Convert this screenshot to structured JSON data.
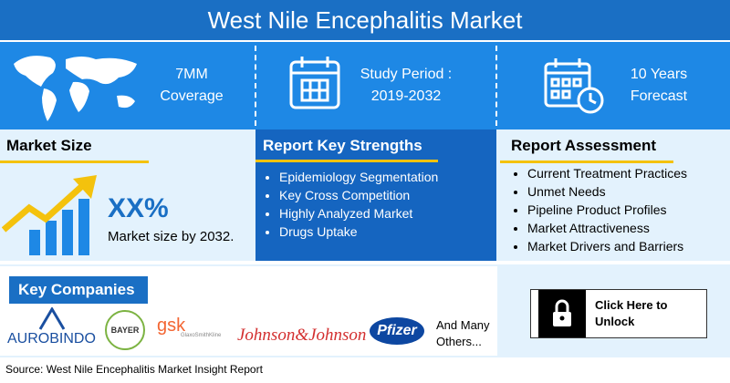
{
  "header": {
    "title": "West Nile Encephalitis Market"
  },
  "highlights": [
    {
      "lines": [
        "7MM",
        "Coverage"
      ]
    },
    {
      "lines": [
        "Study Period :",
        "2019-2032"
      ]
    },
    {
      "lines": [
        "10 Years",
        "Forecast"
      ]
    }
  ],
  "market_size": {
    "title": "Market Size",
    "value": "XX%",
    "caption": "Market size by 2032."
  },
  "key_strengths": {
    "title": "Report Key Strengths",
    "items": [
      "Epidemiology Segmentation",
      "Key Cross Competition",
      "Highly Analyzed Market",
      "Drugs Uptake"
    ]
  },
  "assessment": {
    "title": "Report Assessment",
    "items": [
      "Current Treatment Practices",
      "Unmet Needs",
      "Pipeline Product Profiles",
      "Market Attractiveness",
      "Market Drivers and Barriers"
    ]
  },
  "companies": {
    "title": "Key Companies",
    "logos": [
      "AUROBINDO",
      "BAYER",
      "gsk",
      "GlaxoSmithKline",
      "Johnson&Johnson",
      "Pfizer"
    ],
    "more": "And Many Others..."
  },
  "unlock": {
    "label": "Click Here to Unlock"
  },
  "source": "Source: West Nile Encephalitis Market Insight Report"
}
